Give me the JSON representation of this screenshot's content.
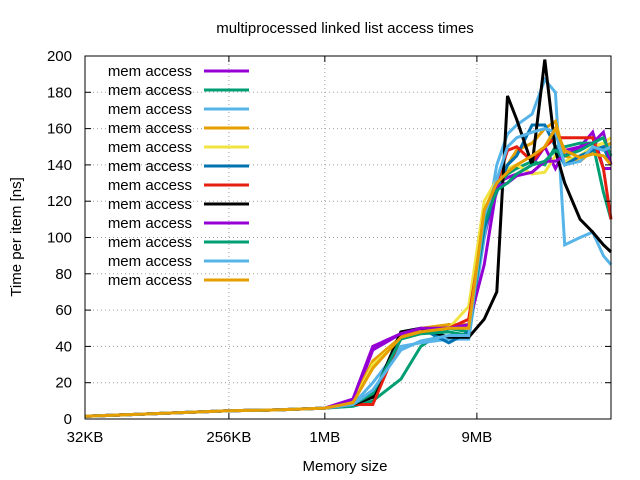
{
  "chart_data": {
    "type": "line",
    "title": "multiprocessed linked list access times",
    "xlabel": "Memory size",
    "ylabel": "Time per item [ns]",
    "xscale": "log2",
    "x_unit": "KB",
    "xlim": [
      32,
      64000
    ],
    "ylim": [
      0,
      200
    ],
    "yticks": [
      0,
      20,
      40,
      60,
      80,
      100,
      120,
      140,
      160,
      180,
      200
    ],
    "xticks": [
      {
        "value": 32,
        "label": "32KB"
      },
      {
        "value": 256,
        "label": "256KB"
      },
      {
        "value": 1024,
        "label": "1MB"
      },
      {
        "value": 9216,
        "label": "9MB"
      }
    ],
    "grid": true,
    "legend_placement": "top-left",
    "x": [
      32,
      64,
      128,
      256,
      512,
      1024,
      1536,
      2048,
      3072,
      4096,
      6144,
      8192,
      10240,
      12288,
      14336,
      16384,
      20480,
      24576,
      28672,
      32768,
      40960,
      49152,
      57344,
      64000
    ],
    "series": [
      {
        "name": "mem access",
        "color": "#9400d3",
        "values": [
          1.5,
          2.5,
          3.5,
          4.5,
          5,
          6,
          9,
          38,
          47,
          48,
          52,
          50,
          100,
          130,
          133,
          135,
          140,
          150,
          138,
          148,
          150,
          158,
          138,
          138
        ]
      },
      {
        "name": "mem access",
        "color": "#009e73",
        "values": [
          1.5,
          2.5,
          3.5,
          4.5,
          5,
          6,
          7,
          10,
          22,
          40,
          50,
          48,
          110,
          128,
          135,
          138,
          142,
          140,
          150,
          150,
          152,
          152,
          125,
          110
        ]
      },
      {
        "name": "mem access",
        "color": "#56b4e9",
        "values": [
          1.5,
          2.5,
          3.5,
          4.5,
          5,
          6,
          8,
          20,
          40,
          42,
          44,
          44,
          100,
          140,
          157,
          162,
          168,
          187,
          180,
          96,
          100,
          103,
          90,
          85
        ]
      },
      {
        "name": "mem access",
        "color": "#e69f00",
        "values": [
          1.5,
          2.5,
          3.5,
          4.5,
          5,
          6,
          10,
          32,
          45,
          50,
          52,
          52,
          110,
          130,
          140,
          148,
          152,
          160,
          164,
          145,
          142,
          148,
          150,
          152
        ]
      },
      {
        "name": "mem access",
        "color": "#f0e442",
        "values": [
          1.5,
          2.5,
          3.5,
          4.5,
          5,
          6,
          9,
          30,
          44,
          47,
          50,
          62,
          120,
          132,
          138,
          140,
          135,
          136,
          145,
          142,
          145,
          150,
          152,
          155
        ]
      },
      {
        "name": "mem access",
        "color": "#0072b2",
        "values": [
          1.5,
          2.5,
          3.5,
          4.5,
          5,
          6,
          8,
          12,
          48,
          50,
          42,
          48,
          105,
          125,
          140,
          145,
          162,
          162,
          150,
          140,
          145,
          148,
          150,
          140
        ]
      },
      {
        "name": "mem access",
        "color": "#e51e10",
        "values": [
          1.5,
          2.5,
          3.5,
          4.5,
          5,
          6,
          8,
          8,
          45,
          48,
          50,
          55,
          110,
          130,
          148,
          150,
          142,
          150,
          155,
          155,
          155,
          155,
          138,
          110
        ]
      },
      {
        "name": "mem access",
        "color": "#000000",
        "values": [
          1.5,
          2.5,
          3.5,
          4.5,
          5,
          6,
          8,
          12,
          48,
          50,
          45,
          45,
          55,
          70,
          178,
          165,
          140,
          198,
          148,
          130,
          110,
          103,
          96,
          92
        ]
      },
      {
        "name": "mem access",
        "color": "#9400d3",
        "values": [
          1.5,
          2.5,
          3.5,
          4.5,
          5,
          6,
          11,
          40,
          47,
          50,
          50,
          52,
          85,
          128,
          130,
          134,
          136,
          142,
          142,
          145,
          150,
          152,
          158,
          140
        ]
      },
      {
        "name": "mem access",
        "color": "#009e73",
        "values": [
          1.5,
          2.5,
          3.5,
          4.5,
          5,
          6,
          8,
          14,
          44,
          47,
          48,
          46,
          108,
          126,
          130,
          135,
          140,
          142,
          148,
          145,
          148,
          152,
          155,
          145
        ]
      },
      {
        "name": "mem access",
        "color": "#56b4e9",
        "values": [
          1.5,
          2.5,
          3.5,
          4.5,
          5,
          6,
          8,
          16,
          38,
          43,
          46,
          46,
          112,
          132,
          150,
          155,
          158,
          160,
          158,
          140,
          142,
          150,
          148,
          150
        ]
      },
      {
        "name": "mem access",
        "color": "#e69f00",
        "values": [
          1.5,
          2.5,
          3.5,
          4.5,
          5,
          6,
          9,
          28,
          45,
          48,
          50,
          50,
          115,
          130,
          136,
          140,
          145,
          150,
          160,
          148,
          144,
          146,
          145,
          140
        ]
      }
    ]
  }
}
